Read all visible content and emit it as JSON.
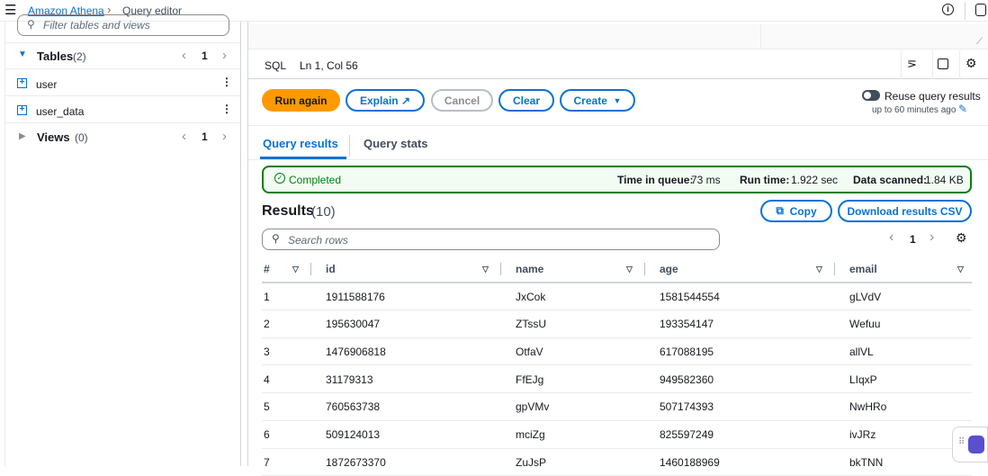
{
  "breadcrumb": {
    "root": "Amazon Athena",
    "current": "Query editor"
  },
  "sidebar": {
    "filter_placeholder": "Filter tables and views",
    "tables": {
      "label": "Tables",
      "count": "(2)",
      "page": "1",
      "items": [
        "user",
        "user_data"
      ]
    },
    "views": {
      "label": "Views",
      "count": "(0)",
      "page": "1"
    }
  },
  "editor": {
    "language": "SQL",
    "cursor": "Ln 1, Col 56"
  },
  "actions": {
    "run": "Run again",
    "explain": "Explain",
    "cancel": "Cancel",
    "clear": "Clear",
    "create": "Create",
    "reuse_label": "Reuse query results",
    "reuse_sub": "up to 60 minutes ago",
    "reuse_enabled": false
  },
  "tabs": [
    {
      "label": "Query results",
      "active": true
    },
    {
      "label": "Query stats",
      "active": false
    }
  ],
  "status": {
    "state": "Completed",
    "queue_label": "Time in queue:",
    "queue": "73 ms",
    "run_label": "Run time:",
    "run": "1.922 sec",
    "scanned_label": "Data scanned:",
    "scanned": "1.84 KB"
  },
  "results": {
    "title": "Results",
    "count": "(10)",
    "copy": "Copy",
    "download": "Download results CSV",
    "search_placeholder": "Search rows",
    "page": "1",
    "columns": [
      "#",
      "id",
      "name",
      "age",
      "email"
    ],
    "rows": [
      [
        "1",
        "1911588176",
        "JxCok",
        "1581544554",
        "gLVdV"
      ],
      [
        "2",
        "195630047",
        "ZTssU",
        "193354147",
        "Wefuu"
      ],
      [
        "3",
        "1476906818",
        "OtfaV",
        "617088195",
        "allVL"
      ],
      [
        "4",
        "31179313",
        "FfEJg",
        "949582360",
        "LIqxP"
      ],
      [
        "5",
        "760563738",
        "gpVMv",
        "507174393",
        "NwHRo"
      ],
      [
        "6",
        "509124013",
        "mciZg",
        "825597249",
        "ivJRz"
      ],
      [
        "7",
        "1872673370",
        "ZuJsP",
        "1460188969",
        "bkTNN"
      ]
    ]
  },
  "colors": {
    "primary": "#0972d3",
    "run": "#ff9900",
    "success": "#037f0c",
    "success_bg": "#f2fcf3"
  }
}
